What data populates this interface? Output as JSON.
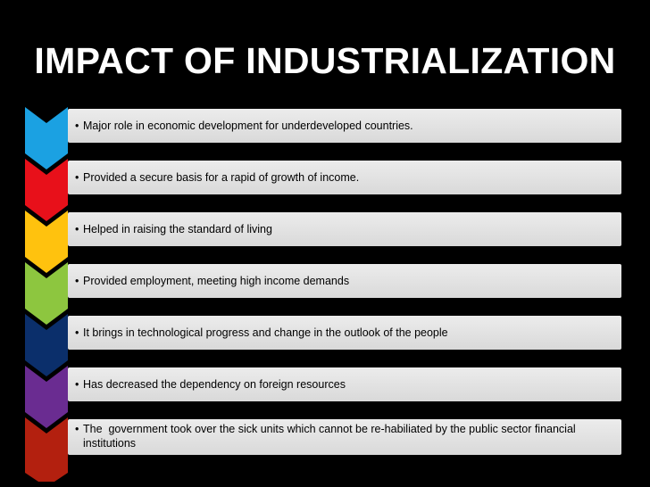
{
  "slide": {
    "title": "IMPACT OF INDUSTRIALIZATION",
    "bullet_glyph": "•",
    "items": [
      {
        "text": "Major role in economic development for underdeveloped countries.",
        "color": "#1ba1e2"
      },
      {
        "text": "Provided a secure basis for a rapid of growth of income.",
        "color": "#e8101a"
      },
      {
        "text": "Helped in raising the standard of living",
        "color": "#ffc20e"
      },
      {
        "text": "Provided employment, meeting high income demands",
        "color": "#8dc63f"
      },
      {
        "text": "It brings in technological progress and change in the outlook of the people",
        "color": "#0b2f6b"
      },
      {
        "text": "Has decreased the dependency on foreign resources",
        "color": "#6a2c91"
      },
      {
        "text": "The  government took over the sick units which cannot be re-habiliated by the public sector financial institutions",
        "color": "#b3200f"
      }
    ]
  }
}
